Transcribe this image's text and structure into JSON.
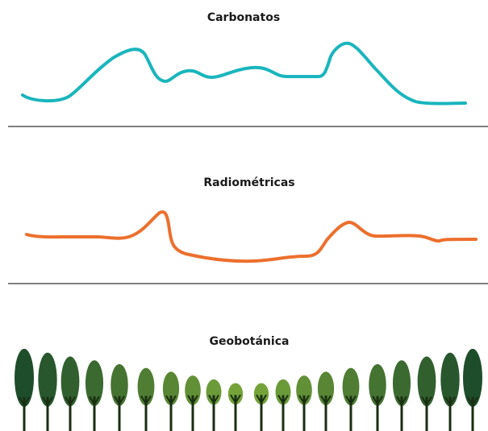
{
  "panels": [
    {
      "title": "Carbonatos"
    },
    {
      "title": "Radiométricas"
    },
    {
      "title": "Geobotánica"
    }
  ]
}
